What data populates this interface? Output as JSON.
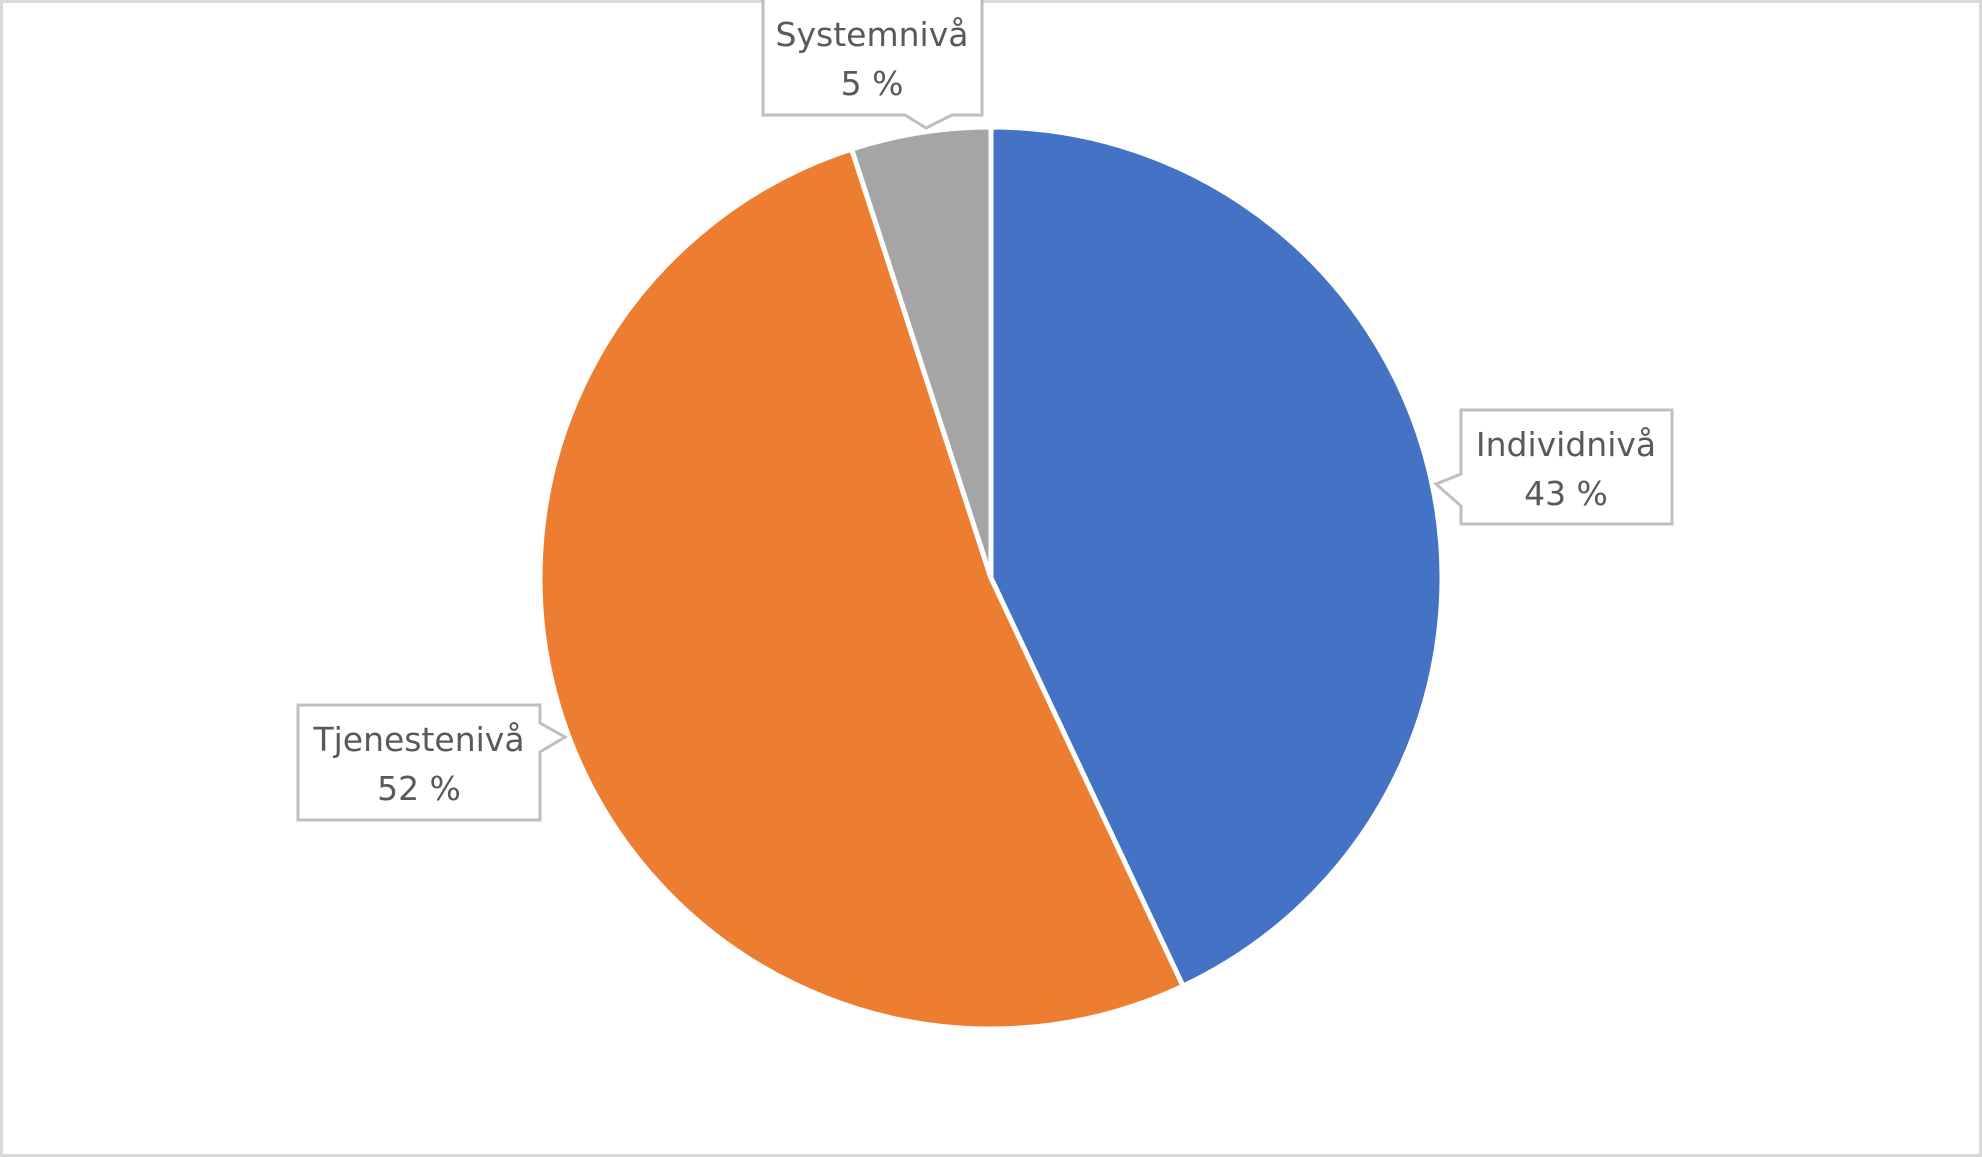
{
  "chart_data": {
    "type": "pie",
    "title": "",
    "categories": [
      "Individnivå",
      "Tjenestenivå",
      "Systemnivå"
    ],
    "values": [
      43,
      52,
      5
    ],
    "value_format": "{v} %",
    "colors": [
      "#4472C4",
      "#ED7D31",
      "#A5A5A5"
    ],
    "start_angle_deg": 0,
    "direction": "clockwise",
    "legend": "none",
    "data_labels": [
      {
        "category": "Individnivå",
        "label": "Individnivå",
        "value_text": "43 %"
      },
      {
        "category": "Tjenestenivå",
        "label": "Tjenestenivå",
        "value_text": "52 %"
      },
      {
        "category": "Systemnivå",
        "label": "Systemnivå",
        "value_text": "5 %"
      }
    ]
  },
  "labels": {
    "individ": {
      "name": "Individnivå",
      "value": "43 %"
    },
    "tjeneste": {
      "name": "Tjenestenivå",
      "value": "52 %"
    },
    "system": {
      "name": "Systemnivå",
      "value": "5 %"
    }
  }
}
